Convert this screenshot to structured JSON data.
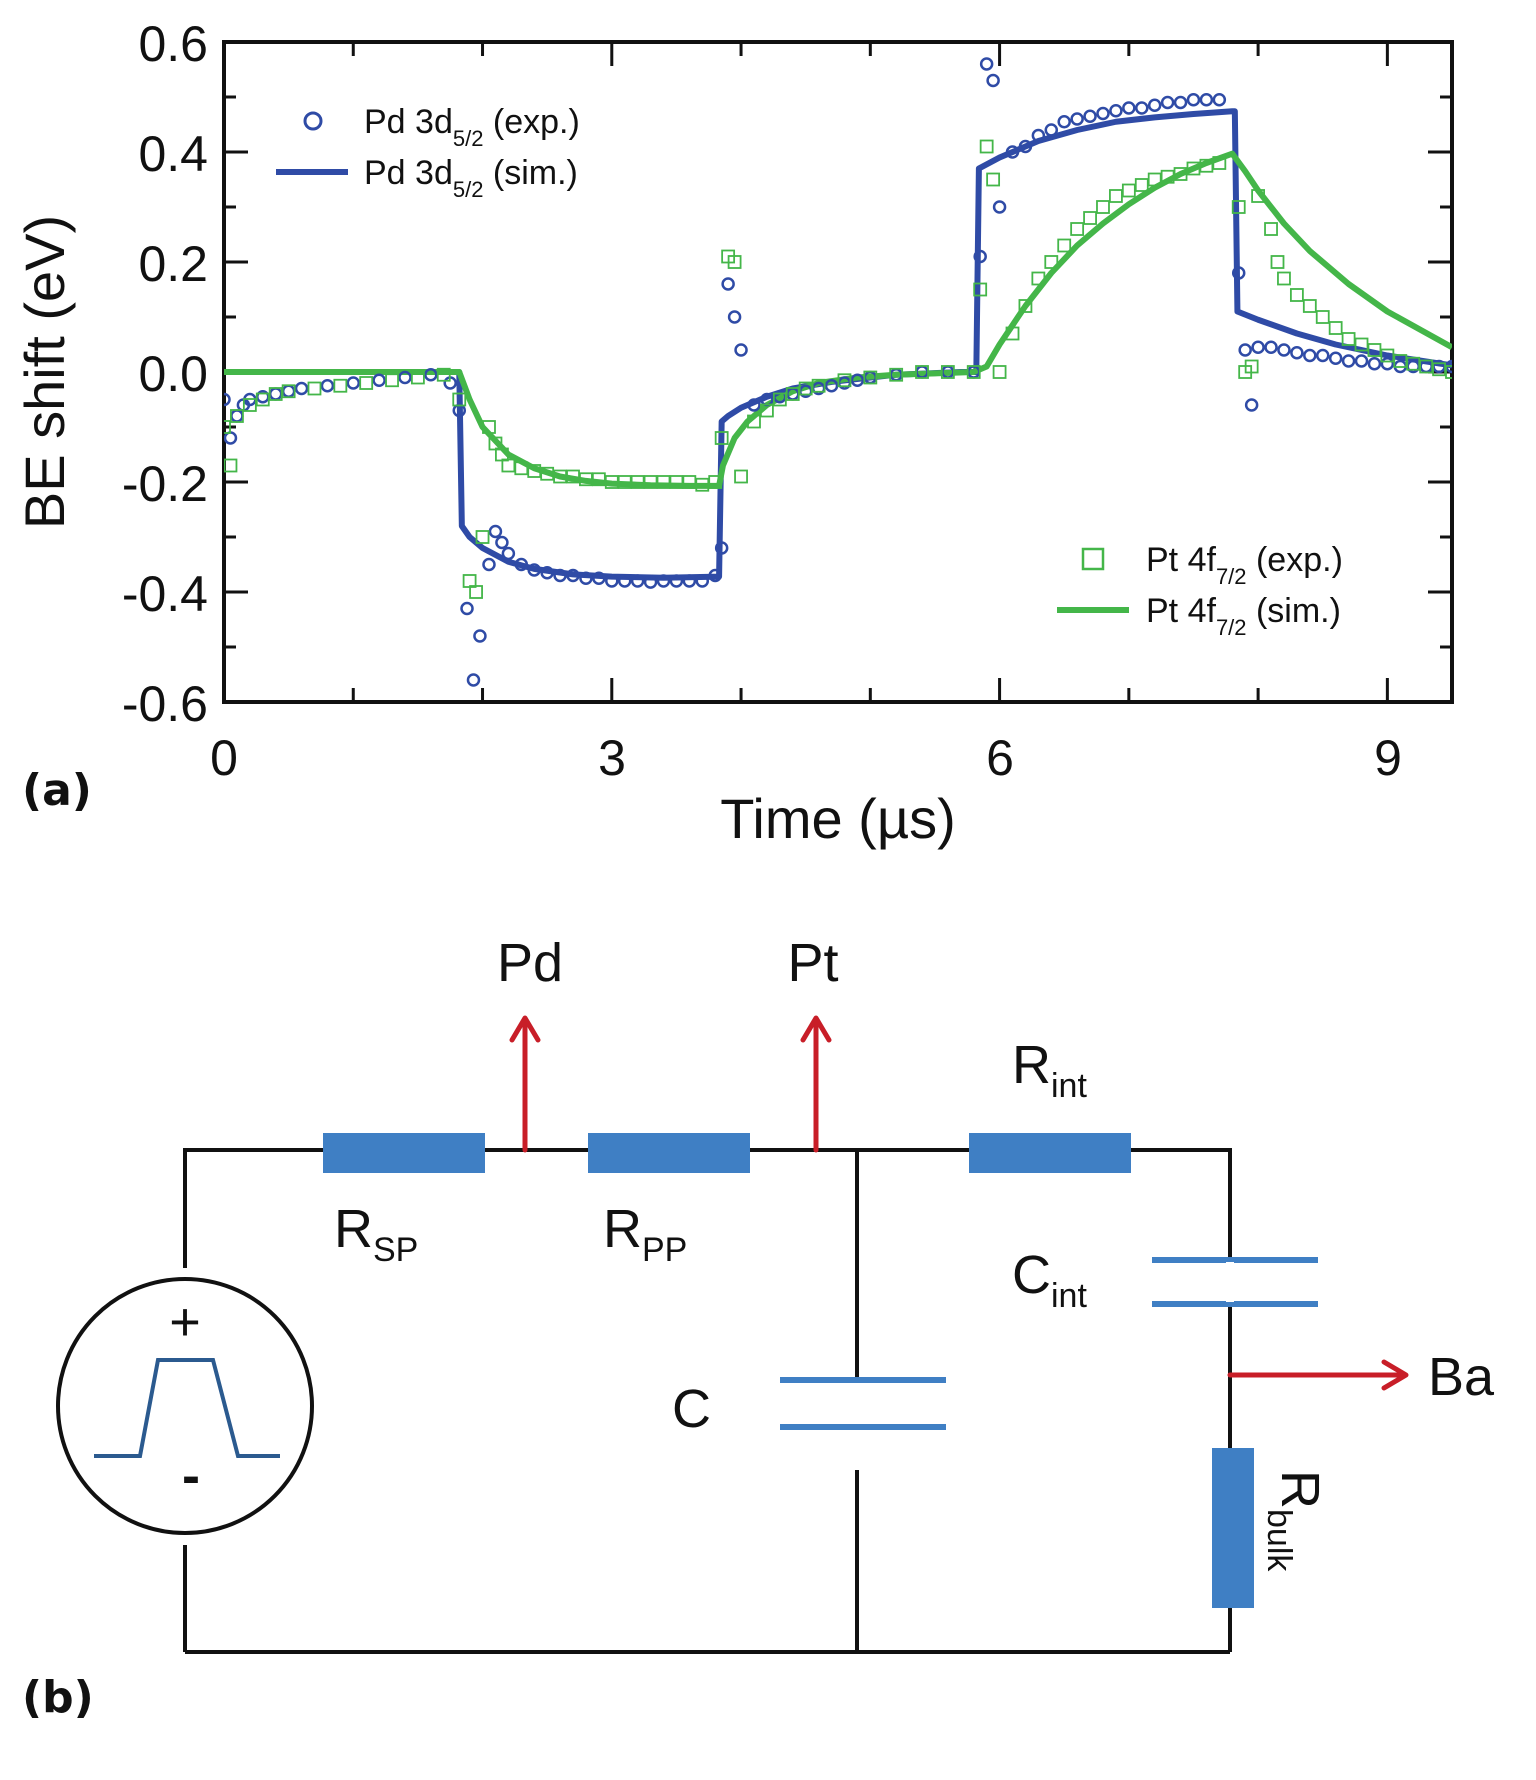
{
  "panel_a_label": "(a)",
  "panel_b_label": "(b)",
  "colors": {
    "pd": "#2F4BA6",
    "pt": "#44B649",
    "wire": "#111111",
    "component": "#3F7FC4",
    "arrow": "#C81E28"
  },
  "chart_data": {
    "type": "scatter",
    "xlabel": "Time (µs)",
    "ylabel": "BE shift (eV)",
    "xlim": [
      0,
      9.5
    ],
    "ylim": [
      -0.6,
      0.6
    ],
    "x_ticks": [
      "0",
      "3",
      "6",
      "9"
    ],
    "y_ticks": [
      "0.6",
      "0.4",
      "0.2",
      "0.0",
      "-0.2",
      "-0.4",
      "-0.6"
    ],
    "grid": false,
    "legend": [
      {
        "name": "Pd 3d",
        "sub": "5/2",
        "suffix": " (exp.)",
        "placement": "top-left",
        "marker": "circle"
      },
      {
        "name": "Pd 3d",
        "sub": "5/2",
        "suffix": " (sim.)",
        "placement": "top-left",
        "marker": "line"
      },
      {
        "name": "Pt 4f",
        "sub": "7/2",
        "suffix": " (exp.)",
        "placement": "bottom-right",
        "marker": "square"
      },
      {
        "name": "Pt 4f",
        "sub": "7/2",
        "suffix": " (sim.)",
        "placement": "bottom-right",
        "marker": "line"
      }
    ],
    "series": [
      {
        "name": "Pd 3d5/2 (sim.)",
        "style": "line",
        "color": "#2F4BA6",
        "x": [
          0,
          1.82,
          1.84,
          1.9,
          2.0,
          2.2,
          2.4,
          2.7,
          3.0,
          3.4,
          3.83,
          3.85,
          3.9,
          4.0,
          4.2,
          4.4,
          4.7,
          5.0,
          5.2,
          5.7,
          5.82,
          5.84,
          6.0,
          6.3,
          6.6,
          6.9,
          7.2,
          7.5,
          7.8,
          7.82,
          7.84,
          8.0,
          8.3,
          8.6,
          9.0,
          9.5
        ],
        "y": [
          0,
          0,
          -0.28,
          -0.3,
          -0.32,
          -0.345,
          -0.358,
          -0.368,
          -0.372,
          -0.374,
          -0.372,
          -0.09,
          -0.08,
          -0.065,
          -0.045,
          -0.03,
          -0.018,
          -0.01,
          -0.005,
          0.0,
          0.0,
          0.37,
          0.39,
          0.42,
          0.44,
          0.455,
          0.463,
          0.469,
          0.474,
          0.474,
          0.11,
          0.095,
          0.07,
          0.05,
          0.03,
          0.012
        ]
      },
      {
        "name": "Pt 4f7/2 (sim.)",
        "style": "line",
        "color": "#44B649",
        "x": [
          0,
          1.82,
          1.9,
          2.0,
          2.2,
          2.4,
          2.6,
          2.8,
          3.0,
          3.3,
          3.6,
          3.83,
          3.86,
          3.95,
          4.05,
          4.2,
          4.4,
          4.6,
          4.9,
          5.2,
          5.8,
          5.9,
          6.0,
          6.2,
          6.4,
          6.6,
          6.8,
          7.0,
          7.2,
          7.4,
          7.6,
          7.8,
          7.9,
          8.0,
          8.2,
          8.4,
          8.7,
          9.0,
          9.5
        ],
        "y": [
          0,
          0,
          -0.05,
          -0.1,
          -0.15,
          -0.175,
          -0.19,
          -0.198,
          -0.203,
          -0.206,
          -0.207,
          -0.207,
          -0.17,
          -0.12,
          -0.09,
          -0.06,
          -0.035,
          -0.02,
          -0.01,
          -0.005,
          0.0,
          0.01,
          0.05,
          0.12,
          0.18,
          0.23,
          0.27,
          0.305,
          0.335,
          0.36,
          0.38,
          0.397,
          0.365,
          0.33,
          0.27,
          0.22,
          0.16,
          0.11,
          0.045
        ]
      },
      {
        "name": "Pd 3d5/2 (exp.)",
        "style": "scatter",
        "marker": "circle",
        "color": "#2F4BA6",
        "x": [
          0.0,
          0.05,
          0.1,
          0.15,
          0.2,
          0.3,
          0.4,
          0.5,
          0.6,
          0.8,
          1.0,
          1.2,
          1.4,
          1.6,
          1.75,
          1.82,
          1.88,
          1.93,
          1.98,
          2.05,
          2.1,
          2.15,
          2.2,
          2.3,
          2.4,
          2.5,
          2.6,
          2.7,
          2.8,
          2.9,
          3.0,
          3.1,
          3.2,
          3.3,
          3.4,
          3.5,
          3.6,
          3.7,
          3.8,
          3.85,
          3.9,
          3.95,
          4.0,
          4.1,
          4.2,
          4.3,
          4.4,
          4.5,
          4.6,
          4.7,
          4.8,
          4.9,
          5.0,
          5.2,
          5.4,
          5.6,
          5.8,
          5.85,
          5.9,
          5.95,
          6.0,
          6.1,
          6.2,
          6.3,
          6.4,
          6.5,
          6.6,
          6.7,
          6.8,
          6.9,
          7.0,
          7.1,
          7.2,
          7.3,
          7.4,
          7.5,
          7.6,
          7.7,
          7.85,
          7.9,
          7.95,
          8.0,
          8.1,
          8.2,
          8.3,
          8.4,
          8.5,
          8.6,
          8.7,
          8.8,
          8.9,
          9.0,
          9.1,
          9.2,
          9.3,
          9.4,
          9.5
        ],
        "y": [
          -0.05,
          -0.12,
          -0.08,
          -0.06,
          -0.05,
          -0.045,
          -0.04,
          -0.035,
          -0.03,
          -0.025,
          -0.02,
          -0.015,
          -0.01,
          -0.005,
          -0.02,
          -0.07,
          -0.43,
          -0.56,
          -0.48,
          -0.35,
          -0.29,
          -0.31,
          -0.33,
          -0.35,
          -0.36,
          -0.365,
          -0.37,
          -0.37,
          -0.375,
          -0.375,
          -0.38,
          -0.38,
          -0.38,
          -0.382,
          -0.38,
          -0.38,
          -0.38,
          -0.38,
          -0.37,
          -0.32,
          0.16,
          0.1,
          0.04,
          -0.06,
          -0.05,
          -0.045,
          -0.04,
          -0.035,
          -0.03,
          -0.025,
          -0.02,
          -0.015,
          -0.01,
          -0.005,
          0.0,
          0.0,
          0.0,
          0.21,
          0.56,
          0.53,
          0.3,
          0.4,
          0.41,
          0.43,
          0.44,
          0.455,
          0.46,
          0.465,
          0.47,
          0.475,
          0.48,
          0.48,
          0.485,
          0.49,
          0.49,
          0.495,
          0.495,
          0.495,
          0.18,
          0.04,
          -0.06,
          0.045,
          0.045,
          0.04,
          0.035,
          0.03,
          0.03,
          0.025,
          0.02,
          0.02,
          0.015,
          0.015,
          0.01,
          0.01,
          0.01,
          0.01,
          0.01
        ]
      },
      {
        "name": "Pt 4f7/2 (exp.)",
        "style": "scatter",
        "marker": "square",
        "color": "#44B649",
        "x": [
          0.0,
          0.05,
          0.1,
          0.2,
          0.3,
          0.4,
          0.5,
          0.7,
          0.9,
          1.1,
          1.3,
          1.5,
          1.7,
          1.82,
          1.9,
          1.95,
          2.0,
          2.05,
          2.1,
          2.15,
          2.2,
          2.3,
          2.4,
          2.5,
          2.6,
          2.7,
          2.8,
          2.9,
          3.0,
          3.1,
          3.2,
          3.3,
          3.4,
          3.5,
          3.6,
          3.7,
          3.8,
          3.85,
          3.9,
          3.95,
          4.0,
          4.1,
          4.2,
          4.3,
          4.4,
          4.5,
          4.6,
          4.8,
          5.0,
          5.2,
          5.4,
          5.6,
          5.8,
          5.85,
          5.9,
          5.95,
          6.0,
          6.1,
          6.2,
          6.3,
          6.4,
          6.5,
          6.6,
          6.7,
          6.8,
          6.9,
          7.0,
          7.1,
          7.2,
          7.3,
          7.4,
          7.5,
          7.6,
          7.7,
          7.85,
          7.9,
          7.95,
          8.0,
          8.1,
          8.15,
          8.2,
          8.3,
          8.4,
          8.5,
          8.6,
          8.7,
          8.8,
          8.9,
          9.0,
          9.1,
          9.2,
          9.3,
          9.4,
          9.5
        ],
        "y": [
          -0.1,
          -0.17,
          -0.08,
          -0.06,
          -0.05,
          -0.04,
          -0.035,
          -0.03,
          -0.025,
          -0.02,
          -0.015,
          -0.01,
          -0.005,
          -0.05,
          -0.38,
          -0.4,
          -0.3,
          -0.1,
          -0.13,
          -0.15,
          -0.17,
          -0.175,
          -0.18,
          -0.185,
          -0.19,
          -0.19,
          -0.195,
          -0.195,
          -0.2,
          -0.2,
          -0.2,
          -0.2,
          -0.2,
          -0.2,
          -0.2,
          -0.205,
          -0.2,
          -0.12,
          0.21,
          0.2,
          -0.19,
          -0.09,
          -0.07,
          -0.05,
          -0.04,
          -0.03,
          -0.025,
          -0.015,
          -0.01,
          -0.005,
          0.0,
          0.0,
          0.0,
          0.15,
          0.41,
          0.35,
          0.0,
          0.07,
          0.12,
          0.17,
          0.2,
          0.23,
          0.26,
          0.28,
          0.3,
          0.32,
          0.33,
          0.34,
          0.35,
          0.355,
          0.36,
          0.37,
          0.375,
          0.38,
          0.3,
          0.0,
          0.01,
          0.32,
          0.26,
          0.2,
          0.17,
          0.14,
          0.12,
          0.1,
          0.08,
          0.06,
          0.05,
          0.04,
          0.03,
          0.02,
          0.015,
          0.01,
          0.005,
          0.0
        ]
      }
    ]
  },
  "circuit": {
    "outputs": {
      "pd": "Pd",
      "pt": "Pt",
      "ba": "Ba"
    },
    "r_sp": {
      "base": "R",
      "sub": "SP"
    },
    "r_pp": {
      "base": "R",
      "sub": "PP"
    },
    "r_int": {
      "base": "R",
      "sub": "int"
    },
    "c_int": {
      "base": "C",
      "sub": "int"
    },
    "c": "C",
    "r_bulk": {
      "base": "R",
      "sub": "bulk"
    },
    "source": {
      "plus": "+",
      "minus": "-"
    }
  }
}
